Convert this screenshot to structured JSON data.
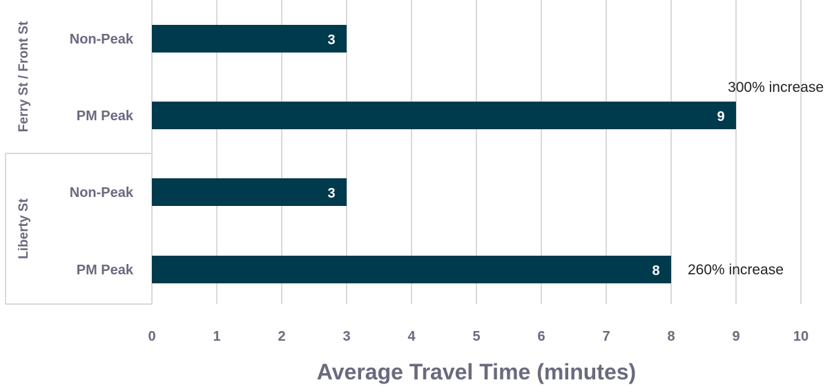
{
  "chart_data": {
    "type": "bar",
    "orientation": "horizontal",
    "groups": [
      {
        "name": "Ferry St / Front St",
        "bars": [
          {
            "category": "Non-Peak",
            "value": 3,
            "label": "3",
            "annotation": ""
          },
          {
            "category": "PM Peak",
            "value": 9,
            "label": "9",
            "annotation": "300% increase"
          }
        ]
      },
      {
        "name": "Liberty St",
        "bars": [
          {
            "category": "Non-Peak",
            "value": 3,
            "label": "3",
            "annotation": ""
          },
          {
            "category": "PM Peak",
            "value": 8,
            "label": "8",
            "annotation": "260% increase"
          }
        ]
      }
    ],
    "xlabel": "Average Travel Time (minutes)",
    "xlim": [
      0,
      10
    ],
    "xticks": [
      "0",
      "1",
      "2",
      "3",
      "4",
      "5",
      "6",
      "7",
      "8",
      "9",
      "10"
    ],
    "grid": "vertical",
    "legend": "none",
    "colors": {
      "bar": "#003a4d",
      "grid": "#d9d9d9",
      "text": "#6a6a7e"
    }
  }
}
